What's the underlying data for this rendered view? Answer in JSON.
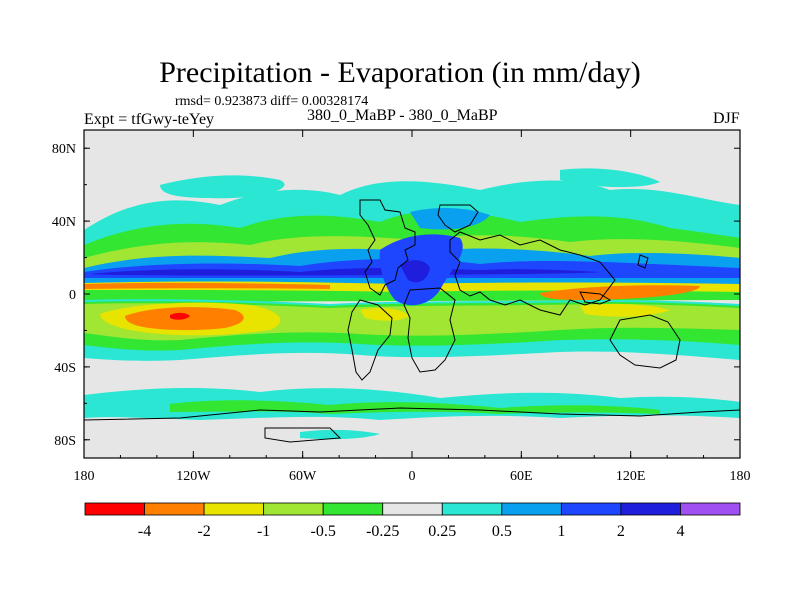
{
  "title": "Precipitation - Evaporation (in mm/day)",
  "stats_text": "rmsd= 0.923873  diff= 0.00328174",
  "experiment_label": "Expt = tfGwy-teYey",
  "case_label": "380_0_MaBP - 380_0_MaBP",
  "season_label": "DJF",
  "map": {
    "projection": "cylindrical equidistant",
    "lat_ticks": [
      "80N",
      "40N",
      "0",
      "40S",
      "80S"
    ],
    "lat_values": [
      80,
      40,
      0,
      -40,
      -80
    ],
    "lon_ticks": [
      "180",
      "120W",
      "60W",
      "0",
      "60E",
      "120E",
      "180"
    ],
    "lon_values": [
      -180,
      -120,
      -60,
      0,
      60,
      120,
      180
    ],
    "background_value_range": "-0.25 to 0.25"
  },
  "colorbar": {
    "labels": [
      "-4",
      "-2",
      "-1",
      "-0.5",
      "-0.25",
      "0.25",
      "0.5",
      "1",
      "2",
      "4"
    ],
    "colors": [
      "#ff0000",
      "#ff8000",
      "#e8e400",
      "#a0e632",
      "#32e632",
      "#e6e6e6",
      "#2ae6d2",
      "#0aa0f0",
      "#1e46ff",
      "#1e1edc",
      "#a050f0"
    ]
  }
}
